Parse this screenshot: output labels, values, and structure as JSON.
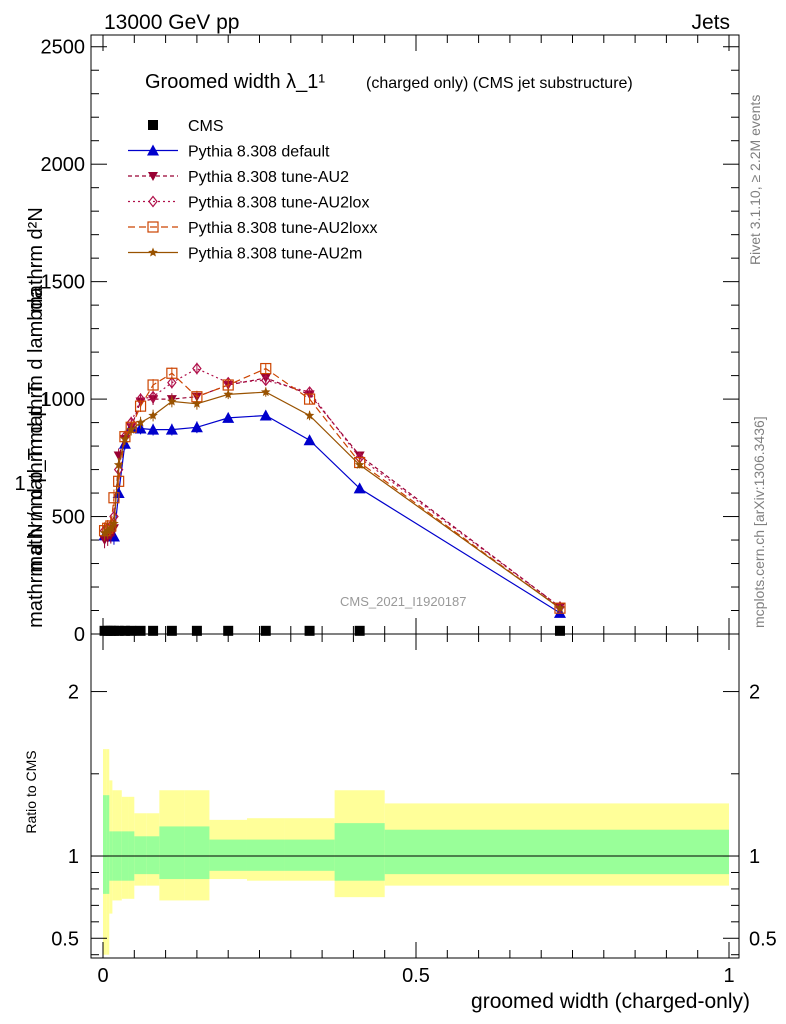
{
  "header": {
    "beam": "13000 GeV pp",
    "category": "Jets",
    "side_version": "Rivet 3.1.10, ≥ 2.2M events",
    "side_site": "mcplots.cern.ch [arXiv:1306.3436]",
    "analysis_id": "CMS_2021_I1920187"
  },
  "chart_data": {
    "type": "line",
    "title_main": "Groomed width λ_1¹",
    "title_sub": "(charged only) (CMS jet substructure)",
    "ylabel_top": "mathrm d²N",
    "ylabel_bottom": "mathrm d p_T mathrm d lambda",
    "ylabel_prefix": "1",
    "ylabel_fraction": "mathrm d N / mathrm d p_T",
    "xlabel": "groomed width (charged-only)",
    "ratio_ylabel": "Ratio to CMS",
    "xlim": [
      0,
      1
    ],
    "ylim": [
      0,
      2550
    ],
    "ratio_ylim": [
      0.38,
      2.35
    ],
    "x_ticks": [
      {
        "v": 0,
        "label": "0"
      },
      {
        "v": 0.5,
        "label": "0.5"
      },
      {
        "v": 1,
        "label": "1"
      }
    ],
    "y_ticks": [
      {
        "v": 0,
        "label": "0"
      },
      {
        "v": 500,
        "label": "500"
      },
      {
        "v": 1000,
        "label": "1000"
      },
      {
        "v": 1500,
        "label": "1500"
      },
      {
        "v": 2000,
        "label": "2000"
      },
      {
        "v": 2500,
        "label": "2500"
      }
    ],
    "ratio_ticks": [
      {
        "v": 0.5,
        "label": "0.5"
      },
      {
        "v": 1,
        "label": "1"
      },
      {
        "v": 2,
        "label": "2"
      }
    ],
    "data_x": [
      0.0025,
      0.0075,
      0.0125,
      0.0175,
      0.025,
      0.035,
      0.045,
      0.06,
      0.08,
      0.11,
      0.15,
      0.2,
      0.26,
      0.33,
      0.41,
      0.73
    ],
    "data_y": [
      5,
      5,
      5,
      5,
      5,
      5,
      5,
      5,
      5,
      5,
      5,
      5,
      5,
      5,
      5,
      5
    ],
    "bins": [
      0,
      0.005,
      0.01,
      0.015,
      0.02,
      0.03,
      0.04,
      0.05,
      0.07,
      0.09,
      0.13,
      0.17,
      0.23,
      0.29,
      0.37,
      0.45,
      1.0
    ],
    "band_inner_hi": [
      1.37,
      1.37,
      1.15,
      1.15,
      1.15,
      1.15,
      1.15,
      1.12,
      1.12,
      1.18,
      1.18,
      1.1,
      1.1,
      1.1,
      1.2,
      1.16
    ],
    "band_inner_lo": [
      0.77,
      0.77,
      0.85,
      0.85,
      0.85,
      0.85,
      0.85,
      0.89,
      0.89,
      0.86,
      0.86,
      0.91,
      0.91,
      0.91,
      0.85,
      0.89
    ],
    "band_outer_hi": [
      1.65,
      1.65,
      1.46,
      1.4,
      1.4,
      1.36,
      1.36,
      1.26,
      1.26,
      1.4,
      1.4,
      1.22,
      1.23,
      1.23,
      1.4,
      1.32
    ],
    "band_outer_lo": [
      0.4,
      0.4,
      0.65,
      0.73,
      0.73,
      0.74,
      0.74,
      0.82,
      0.82,
      0.73,
      0.73,
      0.86,
      0.85,
      0.85,
      0.75,
      0.82
    ],
    "series": [
      {
        "name": "CMS",
        "color": "#000000",
        "marker": "square",
        "dash": "none"
      },
      {
        "name": "Pythia 8.308 default",
        "color": "#0000cc",
        "marker": "triangle-up",
        "dash": "solid",
        "x": [
          0.0025,
          0.0075,
          0.0125,
          0.0175,
          0.025,
          0.035,
          0.045,
          0.06,
          0.08,
          0.11,
          0.15,
          0.2,
          0.26,
          0.33,
          0.41,
          0.73
        ],
        "y": [
          420,
          430,
          425,
          415,
          600,
          810,
          880,
          875,
          870,
          870,
          880,
          920,
          930,
          825,
          620,
          90
        ],
        "err": [
          35,
          35,
          35,
          35,
          30,
          25,
          25,
          25,
          25,
          25,
          25,
          20,
          20,
          20,
          15,
          8
        ]
      },
      {
        "name": "Pythia 8.308 tune-AU2",
        "color": "#990033",
        "marker": "triangle-down",
        "dash": "short",
        "x": [
          0.0025,
          0.0075,
          0.0125,
          0.0175,
          0.025,
          0.035,
          0.045,
          0.06,
          0.08,
          0.11,
          0.15,
          0.2,
          0.26,
          0.33,
          0.41,
          0.73
        ],
        "y": [
          400,
          410,
          420,
          450,
          760,
          830,
          880,
          990,
          1000,
          1000,
          1010,
          1060,
          1090,
          1020,
          760,
          115
        ],
        "err": [
          35,
          35,
          35,
          35,
          30,
          25,
          25,
          25,
          25,
          25,
          25,
          20,
          20,
          20,
          15,
          8
        ]
      },
      {
        "name": "Pythia 8.308 tune-AU2lox",
        "color": "#b0104a",
        "marker": "diamond",
        "dash": "dot",
        "x": [
          0.0025,
          0.0075,
          0.0125,
          0.0175,
          0.025,
          0.035,
          0.045,
          0.06,
          0.08,
          0.11,
          0.15,
          0.2,
          0.26,
          0.33,
          0.41,
          0.73
        ],
        "y": [
          440,
          450,
          460,
          500,
          700,
          840,
          900,
          1000,
          1010,
          1070,
          1130,
          1070,
          1080,
          1030,
          750,
          115
        ],
        "err": [
          35,
          35,
          35,
          35,
          30,
          25,
          25,
          25,
          25,
          25,
          25,
          20,
          20,
          20,
          15,
          8
        ]
      },
      {
        "name": "Pythia 8.308 tune-AU2loxx",
        "color": "#cc4400",
        "marker": "square-open",
        "dash": "dash",
        "x": [
          0.0025,
          0.0075,
          0.0125,
          0.0175,
          0.025,
          0.035,
          0.045,
          0.06,
          0.08,
          0.11,
          0.15,
          0.2,
          0.26,
          0.33,
          0.41,
          0.73
        ],
        "y": [
          440,
          450,
          460,
          580,
          650,
          840,
          880,
          970,
          1060,
          1110,
          1010,
          1060,
          1130,
          1000,
          730,
          110
        ],
        "err": [
          35,
          35,
          35,
          35,
          30,
          25,
          25,
          25,
          25,
          25,
          25,
          20,
          20,
          20,
          15,
          8
        ]
      },
      {
        "name": "Pythia 8.308 tune-AU2m",
        "color": "#995200",
        "marker": "star",
        "dash": "solid",
        "x": [
          0.0025,
          0.0075,
          0.0125,
          0.0175,
          0.025,
          0.035,
          0.045,
          0.06,
          0.08,
          0.11,
          0.15,
          0.2,
          0.26,
          0.33,
          0.41,
          0.73
        ],
        "y": [
          430,
          440,
          450,
          470,
          720,
          830,
          870,
          900,
          930,
          990,
          980,
          1020,
          1030,
          930,
          720,
          110
        ],
        "err": [
          35,
          35,
          35,
          35,
          30,
          25,
          25,
          25,
          25,
          25,
          25,
          20,
          20,
          20,
          15,
          8
        ]
      }
    ]
  }
}
